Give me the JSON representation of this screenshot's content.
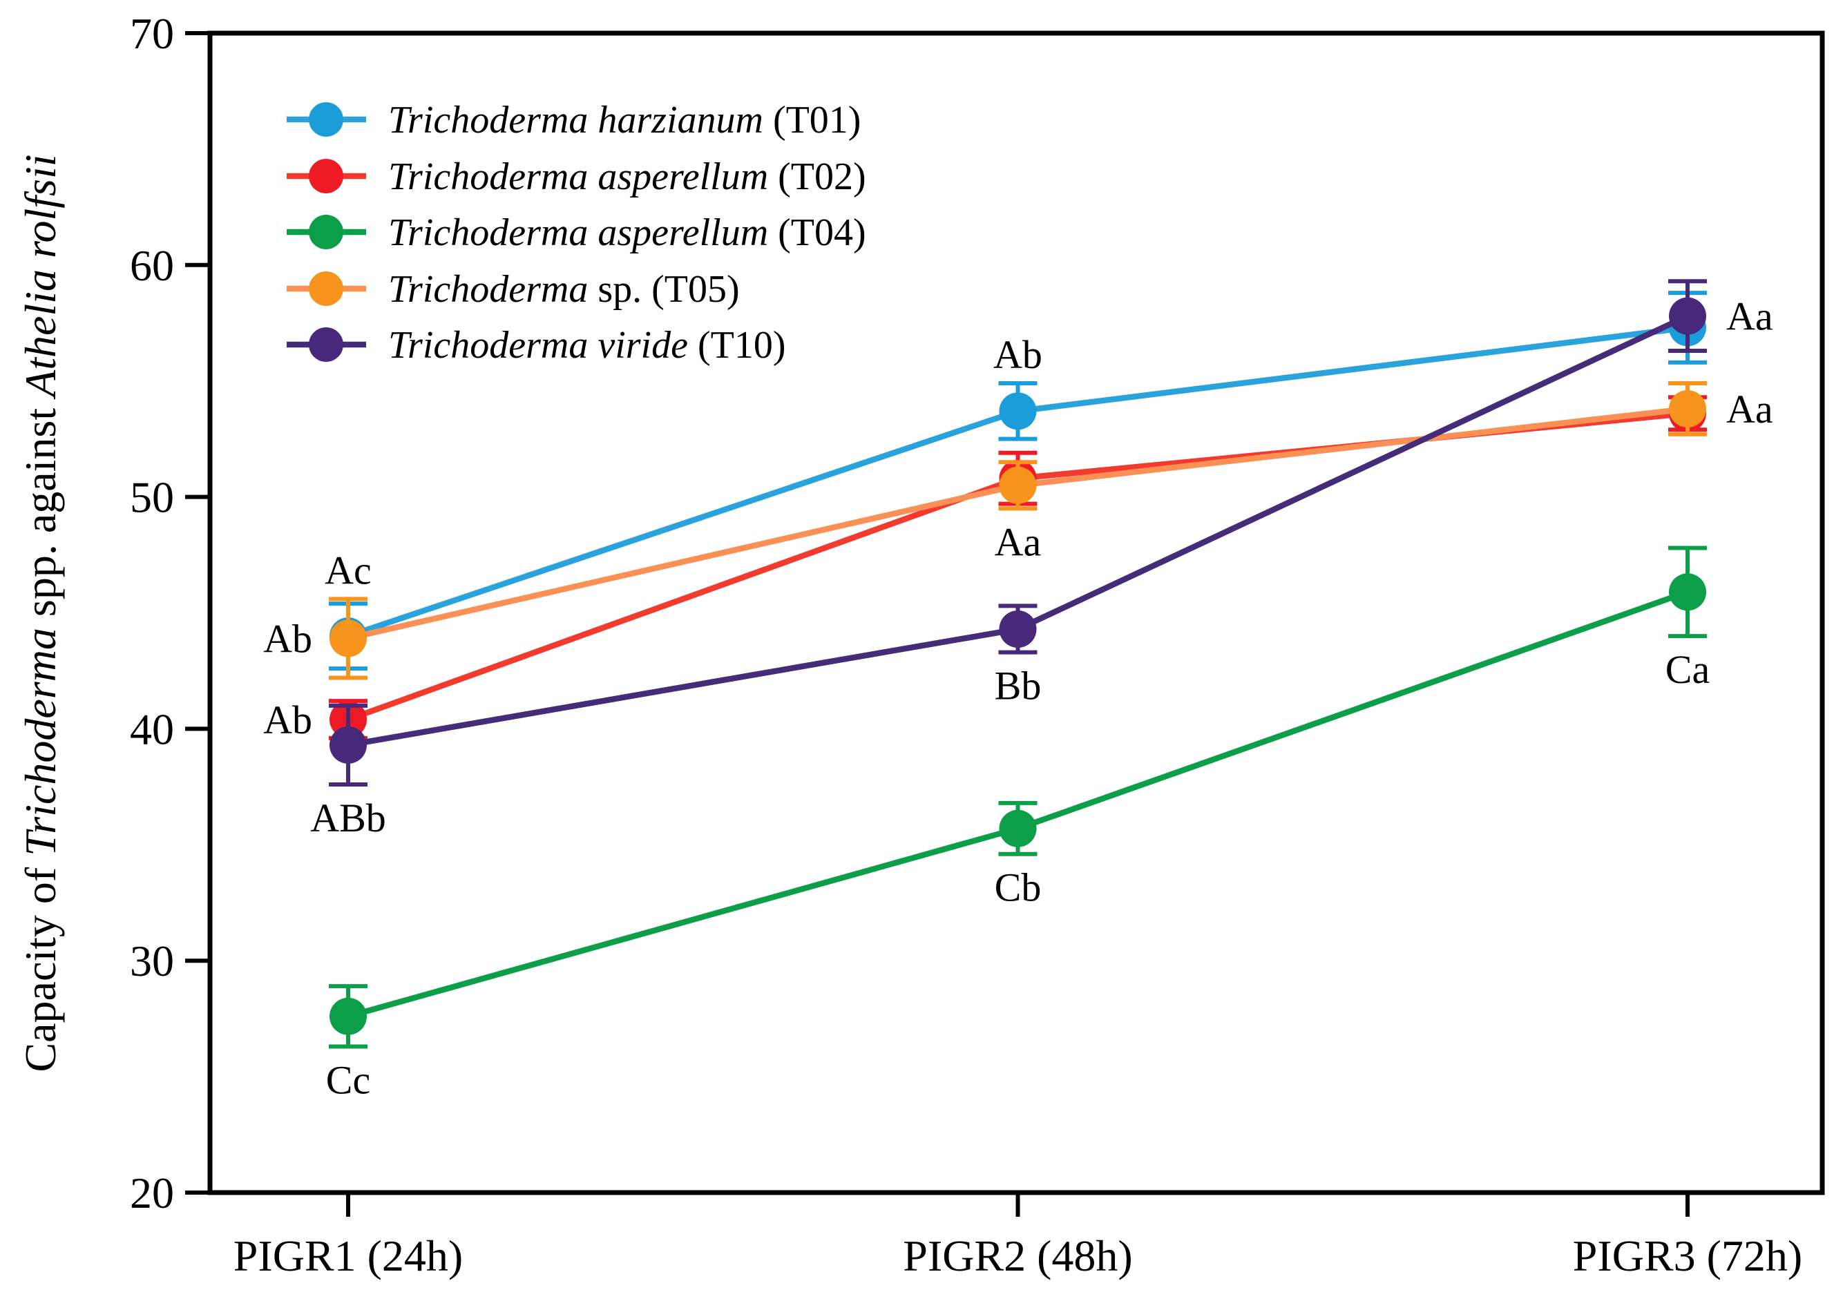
{
  "chart_data": {
    "type": "line",
    "title": "",
    "ylabel": "Capacity of Trichoderma spp. against Athelia rolfsii",
    "ylabel_parts": [
      {
        "text": "Capacity of ",
        "italic": false
      },
      {
        "text": "Trichoderma",
        "italic": true
      },
      {
        "text": " spp. against ",
        "italic": false
      },
      {
        "text": "Athelia rolfsii",
        "italic": true
      }
    ],
    "xlabel": "",
    "categories": [
      "PIGR1 (24h)",
      "PIGR2 (48h)",
      "PIGR3 (72h)"
    ],
    "ylim": [
      20,
      70
    ],
    "yticks": [
      70,
      60,
      50,
      40,
      30,
      20
    ],
    "grid": false,
    "legend_position": "top-left-inside",
    "frame": true,
    "axis_color": "#000000",
    "series": [
      {
        "id": "T01",
        "label_italic": "Trichoderma harzianum",
        "label_roman": " (T01)",
        "marker_color": "#1b9dd9",
        "line_color": "#2aa3dc",
        "values": [
          44.0,
          53.7,
          57.3
        ],
        "errors": [
          1.4,
          1.2,
          1.5
        ]
      },
      {
        "id": "T02",
        "label_italic": "Trichoderma asperellum",
        "label_roman": " (T02)",
        "marker_color": "#ed1c24",
        "line_color": "#f23b2e",
        "values": [
          40.4,
          50.8,
          53.6
        ],
        "errors": [
          0.8,
          1.1,
          0.7
        ]
      },
      {
        "id": "T04",
        "label_italic": "Trichoderma asperellum",
        "label_roman": " (T04)",
        "marker_color": "#0c9e49",
        "line_color": "#0c9e49",
        "values": [
          27.6,
          35.7,
          45.9
        ],
        "errors": [
          1.3,
          1.1,
          1.9
        ]
      },
      {
        "id": "T05",
        "label_italic": "Trichoderma",
        "label_roman": " sp. (T05)",
        "marker_color": "#f7941d",
        "line_color": "#fb9055",
        "values": [
          43.9,
          50.5,
          53.8
        ],
        "errors": [
          1.7,
          1.0,
          1.1
        ]
      },
      {
        "id": "T10",
        "label_italic": "Trichoderma viride",
        "label_roman": " (T10)",
        "marker_color": "#48287b",
        "line_color": "#452c79",
        "values": [
          39.3,
          44.3,
          57.8
        ],
        "errors": [
          1.7,
          1.0,
          1.5
        ]
      }
    ],
    "annotations": [
      {
        "text": "Ac",
        "cat": 0,
        "series": "T05",
        "pos": "above"
      },
      {
        "text": "Ab",
        "cat": 0,
        "series": "T05",
        "pos": "left"
      },
      {
        "text": "Ab",
        "cat": 0,
        "series": "T02",
        "pos": "left"
      },
      {
        "text": "ABb",
        "cat": 0,
        "series": "T10",
        "pos": "below"
      },
      {
        "text": "Cc",
        "cat": 0,
        "series": "T04",
        "pos": "below"
      },
      {
        "text": "Ab",
        "cat": 1,
        "series": "T01",
        "pos": "above"
      },
      {
        "text": "Aa",
        "cat": 1,
        "series": "T05",
        "pos": "below"
      },
      {
        "text": "Bb",
        "cat": 1,
        "series": "T10",
        "pos": "below"
      },
      {
        "text": "Cb",
        "cat": 1,
        "series": "T04",
        "pos": "below"
      },
      {
        "text": "Aa",
        "cat": 2,
        "series": "T10",
        "pos": "right"
      },
      {
        "text": "Aa",
        "cat": 2,
        "series": "T05",
        "pos": "right"
      },
      {
        "text": "Ca",
        "cat": 2,
        "series": "T04",
        "pos": "below"
      }
    ]
  }
}
